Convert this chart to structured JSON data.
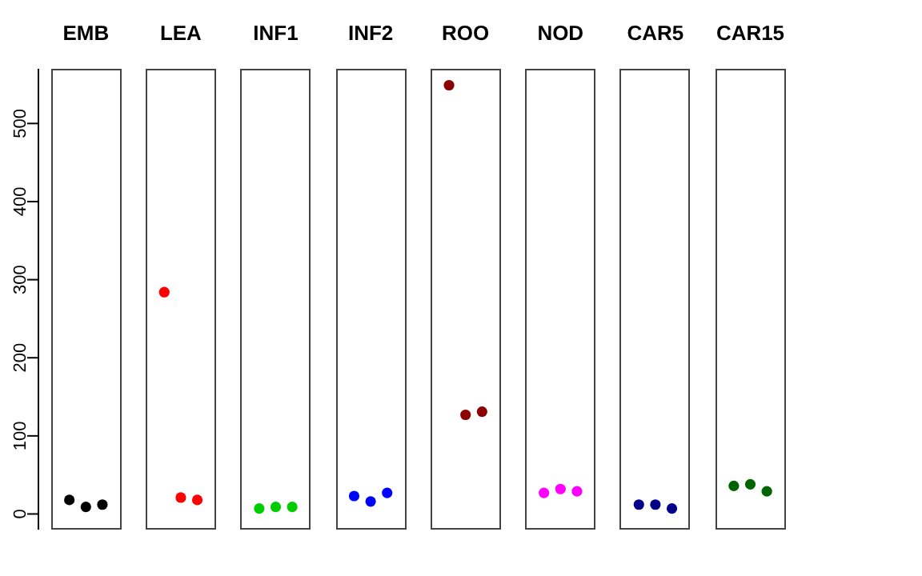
{
  "chart_data": {
    "type": "scatter",
    "categories": [
      "EMB",
      "LEA",
      "INF1",
      "INF2",
      "ROO",
      "NOD",
      "CAR5",
      "CAR15"
    ],
    "series": [
      {
        "colors": [
          "#000000",
          "#ff0000",
          "#00cd00",
          "#0000ff",
          "#8b0000",
          "#ff00ff",
          "#00008b",
          "#006400"
        ],
        "values": [
          18,
          284,
          7,
          23,
          549,
          27,
          12,
          36
        ]
      },
      {
        "colors": [
          "#000000",
          "#ff0000",
          "#00cd00",
          "#0000ff",
          "#8b0000",
          "#ff00ff",
          "#00008b",
          "#006400"
        ],
        "values": [
          9,
          21,
          9,
          16,
          127,
          32,
          12,
          38
        ]
      },
      {
        "colors": [
          "#000000",
          "#ff0000",
          "#00cd00",
          "#0000ff",
          "#8b0000",
          "#ff00ff",
          "#00008b",
          "#006400"
        ],
        "values": [
          12,
          18,
          9,
          27,
          131,
          29,
          7,
          29
        ]
      }
    ],
    "ylim": [
      -20,
      570
    ],
    "yticks": [
      0,
      100,
      200,
      300,
      400,
      500
    ],
    "marker": "circle"
  }
}
